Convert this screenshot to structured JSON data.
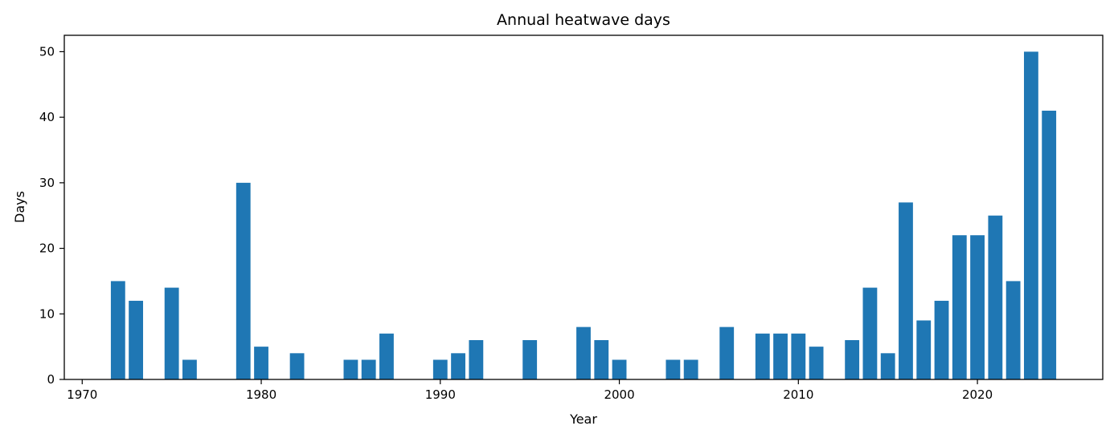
{
  "chart_data": {
    "type": "bar",
    "title": "Annual heatwave days",
    "xlabel": "Year",
    "ylabel": "Days",
    "xlim": [
      1969,
      2027
    ],
    "ylim": [
      0,
      52.5
    ],
    "xticks": [
      1970,
      1980,
      1990,
      2000,
      2010,
      2020
    ],
    "yticks": [
      0,
      10,
      20,
      30,
      40,
      50
    ],
    "grid": false,
    "bar_color": "#1f77b4",
    "x": [
      1972,
      1973,
      1975,
      1976,
      1979,
      1980,
      1982,
      1985,
      1986,
      1987,
      1990,
      1991,
      1992,
      1995,
      1998,
      1999,
      2000,
      2003,
      2004,
      2006,
      2008,
      2009,
      2010,
      2011,
      2013,
      2014,
      2015,
      2016,
      2017,
      2018,
      2019,
      2020,
      2021,
      2022,
      2023,
      2024
    ],
    "values": [
      15,
      12,
      14,
      3,
      30,
      5,
      4,
      3,
      3,
      7,
      3,
      4,
      6,
      6,
      8,
      6,
      3,
      3,
      3,
      8,
      7,
      7,
      7,
      5,
      6,
      14,
      4,
      27,
      9,
      12,
      22,
      22,
      25,
      15,
      50,
      41
    ]
  }
}
